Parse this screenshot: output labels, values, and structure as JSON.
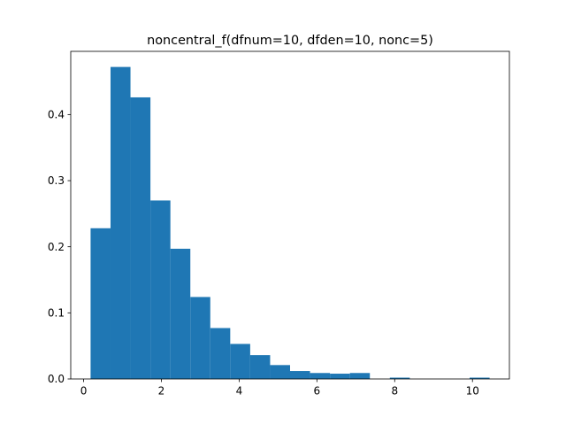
{
  "chart_data": {
    "type": "bar",
    "title": "noncentral_f(dfnum=10, dfden=10, nonc=5)",
    "xlabel": "",
    "ylabel": "",
    "bin_edges": [
      0.18,
      0.693,
      1.206,
      1.719,
      2.232,
      2.745,
      3.258,
      3.771,
      4.284,
      4.797,
      5.31,
      5.823,
      6.336,
      6.849,
      7.362,
      7.875,
      8.388,
      8.901,
      9.414,
      9.927,
      10.44
    ],
    "values": [
      0.228,
      0.472,
      0.426,
      0.27,
      0.197,
      0.124,
      0.077,
      0.053,
      0.036,
      0.021,
      0.012,
      0.009,
      0.008,
      0.009,
      0.0,
      0.002,
      0.0,
      0.0,
      0.0,
      0.002
    ],
    "xlim": [
      -0.33,
      10.95
    ],
    "ylim": [
      0,
      0.4956
    ],
    "xticks": [
      0,
      2,
      4,
      6,
      8,
      10
    ],
    "xtick_labels": [
      "0",
      "2",
      "4",
      "6",
      "8",
      "10"
    ],
    "yticks": [
      0.0,
      0.1,
      0.2,
      0.3,
      0.4
    ],
    "ytick_labels": [
      "0.0",
      "0.1",
      "0.2",
      "0.3",
      "0.4"
    ],
    "bar_color": "#1f77b4",
    "grid": false,
    "legend": false
  }
}
